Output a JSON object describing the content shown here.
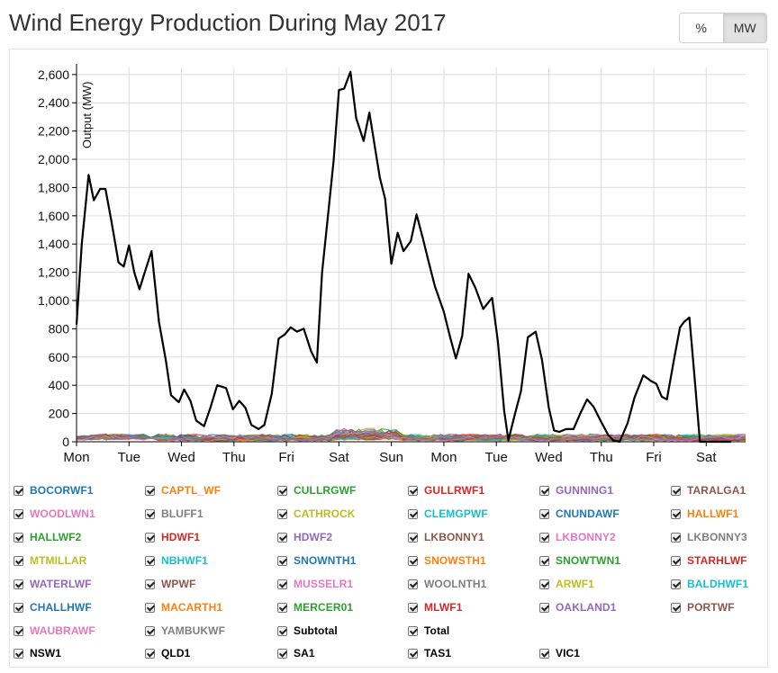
{
  "title": "Wind Energy Production During May 2017",
  "toggle": {
    "percent_label": "%",
    "mw_label": "MW",
    "active": "MW"
  },
  "chart_data": {
    "type": "line",
    "title": "Wind Energy Production During May 2017",
    "ylabel": "Output (MW)",
    "xlabel": "",
    "ylim": [
      0,
      2650
    ],
    "yticks": [
      0,
      200,
      400,
      600,
      800,
      1000,
      1200,
      1400,
      1600,
      1800,
      2000,
      2200,
      2400,
      2600
    ],
    "xlim": [
      0,
      12.75
    ],
    "xticks": [
      {
        "x": 0,
        "label": "Mon"
      },
      {
        "x": 1,
        "label": "Tue"
      },
      {
        "x": 2,
        "label": "Wed"
      },
      {
        "x": 3,
        "label": "Thu"
      },
      {
        "x": 4,
        "label": "Fri"
      },
      {
        "x": 5,
        "label": "Sat"
      },
      {
        "x": 6,
        "label": "Sun"
      },
      {
        "x": 7,
        "label": "Mon"
      },
      {
        "x": 8,
        "label": "Tue"
      },
      {
        "x": 9,
        "label": "Wed"
      },
      {
        "x": 10,
        "label": "Thu"
      },
      {
        "x": 11,
        "label": "Fri"
      },
      {
        "x": 12,
        "label": "Sat"
      }
    ],
    "grid": true,
    "series": [
      {
        "name": "Total",
        "color": "#000000",
        "x": [
          0,
          0.1,
          0.23,
          0.33,
          0.45,
          0.55,
          0.66,
          0.8,
          0.9,
          1.0,
          1.1,
          1.2,
          1.3,
          1.43,
          1.57,
          1.7,
          1.8,
          1.95,
          2.05,
          2.17,
          2.28,
          2.43,
          2.55,
          2.68,
          2.85,
          2.98,
          3.1,
          3.22,
          3.33,
          3.47,
          3.58,
          3.72,
          3.85,
          3.97,
          4.08,
          4.2,
          4.33,
          4.47,
          4.58,
          4.68,
          4.8,
          4.9,
          5.0,
          5.1,
          5.22,
          5.33,
          5.47,
          5.58,
          5.68,
          5.78,
          5.88,
          6.0,
          6.12,
          6.23,
          6.37,
          6.48,
          6.6,
          6.7,
          6.83,
          7.0,
          7.12,
          7.23,
          7.35,
          7.47,
          7.6,
          7.75,
          7.92,
          8.03,
          8.15,
          8.23,
          8.35,
          8.47,
          8.6,
          8.75,
          8.87,
          9.0,
          9.1,
          9.2,
          9.33,
          9.47,
          9.6,
          9.73,
          9.85,
          10.0,
          10.13,
          10.23,
          10.35,
          10.5,
          10.63,
          10.8,
          10.95,
          11.05,
          11.15,
          11.25,
          11.4,
          11.5,
          11.58,
          11.68,
          11.77,
          11.88,
          12.0,
          12.12,
          12.22,
          12.35,
          12.47
        ],
        "y": [
          830,
          1400,
          1890,
          1710,
          1790,
          1790,
          1570,
          1270,
          1240,
          1390,
          1200,
          1080,
          1200,
          1350,
          850,
          580,
          330,
          280,
          370,
          290,
          150,
          110,
          240,
          400,
          380,
          230,
          290,
          240,
          120,
          90,
          120,
          340,
          730,
          760,
          810,
          780,
          800,
          640,
          560,
          1200,
          1630,
          1990,
          2490,
          2500,
          2620,
          2290,
          2130,
          2330,
          2100,
          1870,
          1720,
          1260,
          1480,
          1350,
          1420,
          1610,
          1440,
          1290,
          1100,
          920,
          740,
          590,
          750,
          1190,
          1090,
          940,
          1020,
          710,
          220,
          10,
          190,
          360,
          740,
          780,
          580,
          240,
          80,
          70,
          90,
          90,
          200,
          300,
          250,
          140,
          50,
          10,
          0,
          130,
          310,
          470,
          430,
          410,
          320,
          300,
          610,
          810,
          850,
          880,
          490,
          0,
          0,
          0,
          0,
          0,
          0
        ]
      }
    ],
    "component_series_names": [
      "BOCORWF1",
      "CAPTL_WF",
      "CULLRGWF",
      "GULLRWF1",
      "GUNNING1",
      "TARALGA1",
      "WOODLWN1",
      "BLUFF1",
      "CATHROCK",
      "CLEMGPWF",
      "CNUNDAWF",
      "HALLWF1",
      "HALLWF2",
      "HDWF1",
      "HDWF2",
      "LKBONNY1",
      "LKBONNY2",
      "LKBONNY3",
      "MTMILLAR",
      "NBHWF1",
      "SNOWNTH1",
      "SNOWSTH1",
      "SNOWTWN1",
      "STARHLWF",
      "WATERLWF",
      "WPWF",
      "MUSSELR1",
      "WOOLNTH1",
      "ARWF1",
      "BALDHWF1",
      "CHALLHWF",
      "MACARTH1",
      "MERCER01",
      "MLWF1",
      "OAKLAND1",
      "PORTWF",
      "WAUBRAWF",
      "YAMBUKWF"
    ],
    "component_note_values_range": [
      0,
      260
    ]
  },
  "legend": {
    "items": [
      {
        "label": "BOCORWF1",
        "color": "#1f77b4"
      },
      {
        "label": "CAPTL_WF",
        "color": "#ff7f0e"
      },
      {
        "label": "CULLRGWF",
        "color": "#2ca02c"
      },
      {
        "label": "GULLRWF1",
        "color": "#d62728"
      },
      {
        "label": "GUNNING1",
        "color": "#9467bd"
      },
      {
        "label": "TARALGA1",
        "color": "#8c564b"
      },
      {
        "label": "WOODLWN1",
        "color": "#e377c2"
      },
      {
        "label": "BLUFF1",
        "color": "#7f7f7f"
      },
      {
        "label": "CATHROCK",
        "color": "#bcbd22"
      },
      {
        "label": "CLEMGPWF",
        "color": "#17becf"
      },
      {
        "label": "CNUNDAWF",
        "color": "#1f77b4"
      },
      {
        "label": "HALLWF1",
        "color": "#ff7f0e"
      },
      {
        "label": "HALLWF2",
        "color": "#2ca02c"
      },
      {
        "label": "HDWF1",
        "color": "#d62728"
      },
      {
        "label": "HDWF2",
        "color": "#9467bd"
      },
      {
        "label": "LKBONNY1",
        "color": "#8c564b"
      },
      {
        "label": "LKBONNY2",
        "color": "#e377c2"
      },
      {
        "label": "LKBONNY3",
        "color": "#7f7f7f"
      },
      {
        "label": "MTMILLAR",
        "color": "#bcbd22"
      },
      {
        "label": "NBHWF1",
        "color": "#17becf"
      },
      {
        "label": "SNOWNTH1",
        "color": "#1f77b4"
      },
      {
        "label": "SNOWSTH1",
        "color": "#ff7f0e"
      },
      {
        "label": "SNOWTWN1",
        "color": "#2ca02c"
      },
      {
        "label": "STARHLWF",
        "color": "#d62728"
      },
      {
        "label": "WATERLWF",
        "color": "#9467bd"
      },
      {
        "label": "WPWF",
        "color": "#8c564b"
      },
      {
        "label": "MUSSELR1",
        "color": "#e377c2"
      },
      {
        "label": "WOOLNTH1",
        "color": "#7f7f7f"
      },
      {
        "label": "ARWF1",
        "color": "#bcbd22"
      },
      {
        "label": "BALDHWF1",
        "color": "#17becf"
      },
      {
        "label": "CHALLHWF",
        "color": "#1f77b4"
      },
      {
        "label": "MACARTH1",
        "color": "#ff7f0e"
      },
      {
        "label": "MERCER01",
        "color": "#2ca02c"
      },
      {
        "label": "MLWF1",
        "color": "#d62728"
      },
      {
        "label": "OAKLAND1",
        "color": "#9467bd"
      },
      {
        "label": "PORTWF",
        "color": "#8c564b"
      },
      {
        "label": "WAUBRAWF",
        "color": "#e377c2"
      },
      {
        "label": "YAMBUKWF",
        "color": "#7f7f7f"
      },
      {
        "label": "Subtotal",
        "color": "#000000"
      },
      {
        "label": "Total",
        "color": "#000000"
      },
      {
        "label": "NSW1",
        "color": "#000000"
      },
      {
        "label": "QLD1",
        "color": "#000000"
      },
      {
        "label": "SA1",
        "color": "#000000"
      },
      {
        "label": "TAS1",
        "color": "#000000"
      },
      {
        "label": "VIC1",
        "color": "#000000"
      }
    ]
  }
}
